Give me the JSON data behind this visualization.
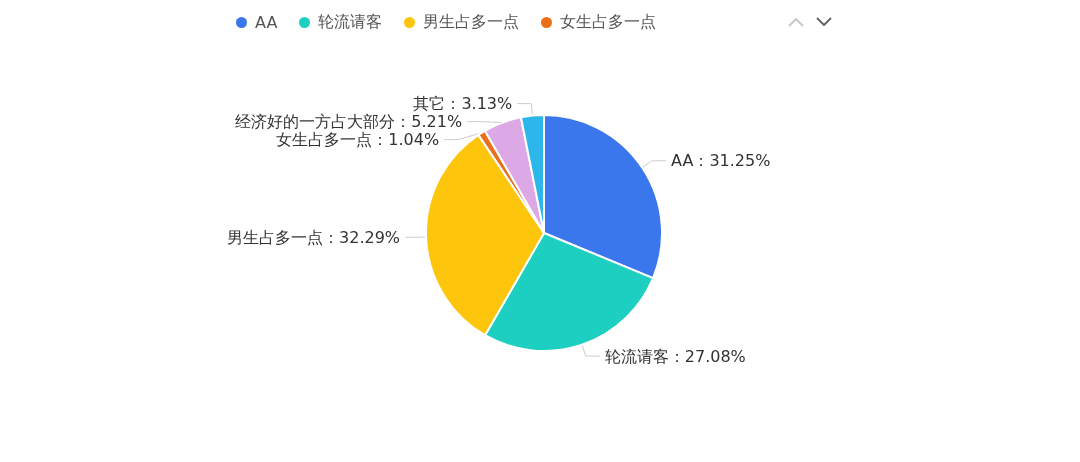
{
  "chart_data": {
    "type": "pie",
    "categories": [
      "AA",
      "轮流请客",
      "男生占多一点",
      "女生占多一点",
      "经济好的一方占大部分",
      "其它"
    ],
    "values": [
      31.25,
      27.08,
      32.29,
      1.04,
      5.21,
      3.13
    ],
    "colors": [
      "#3a76ec",
      "#1ccfc0",
      "#fdc50c",
      "#e8701b",
      "#dda8e6",
      "#2db6e9"
    ],
    "value_labels": [
      "：31.25%",
      "：27.08%",
      "：32.29%",
      "：1.04%",
      "：5.21%",
      "：3.13%"
    ],
    "legend": "top"
  }
}
